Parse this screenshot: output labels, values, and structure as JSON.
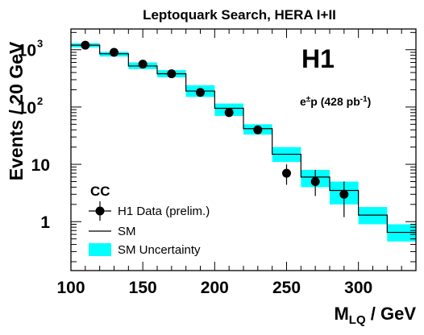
{
  "chart_data": {
    "type": "line",
    "title": "Leptoquark Search, HERA I+II",
    "xlabel_main": "M",
    "xlabel_sub": "LQ",
    "xlabel_unit": " / GeV",
    "ylabel": "Events / 20 GeV",
    "x_scale": "linear",
    "y_scale": "log",
    "xlim": [
      100,
      340
    ],
    "ylim": [
      0.14,
      2300
    ],
    "x_ticks": [
      {
        "value": 100,
        "label": "100"
      },
      {
        "value": 150,
        "label": "150"
      },
      {
        "value": 200,
        "label": "200"
      },
      {
        "value": 250,
        "label": "250"
      },
      {
        "value": 300,
        "label": "300"
      }
    ],
    "y_ticks": [
      {
        "value": 1,
        "label_base": "1",
        "label_exp": ""
      },
      {
        "value": 10,
        "label_base": "10",
        "label_exp": ""
      },
      {
        "value": 100,
        "label_base": "10",
        "label_exp": "2"
      },
      {
        "value": 1000,
        "label_base": "10",
        "label_exp": "3"
      }
    ],
    "experiment_label": "H1",
    "lumi_label_main": "e",
    "lumi_label_sup": "±",
    "lumi_label_rest": "p (428 pb",
    "lumi_label_sup2": "-1",
    "lumi_label_end": ")",
    "channel_label": "CC",
    "legend": {
      "placement": "bottom-left",
      "entries": [
        "H1 Data (prelim.)",
        "SM",
        "SM Uncertainty"
      ]
    },
    "colors": {
      "data": "#000000",
      "sm": "#000000",
      "uncertainty": "#00ffff"
    },
    "series": [
      {
        "name": "H1 Data (prelim.)",
        "kind": "points",
        "x": [
          110,
          130,
          150,
          170,
          190,
          210,
          230,
          250,
          270,
          290
        ],
        "y": [
          1200,
          900,
          560,
          380,
          180,
          80,
          40,
          7,
          5,
          3
        ],
        "y_low": [
          1120,
          840,
          520,
          350,
          165,
          71,
          34,
          4.4,
          2.8,
          1.2
        ],
        "y_high": [
          1280,
          960,
          600,
          410,
          195,
          89,
          46,
          10,
          8,
          5
        ]
      },
      {
        "name": "SM",
        "kind": "step",
        "bin_edges": [
          100,
          120,
          140,
          160,
          180,
          200,
          220,
          240,
          260,
          280,
          300,
          320,
          340
        ],
        "values": [
          1200,
          850,
          520,
          380,
          190,
          95,
          42,
          15,
          6,
          3.5,
          1.3,
          0.65
        ]
      },
      {
        "name": "SM Uncertainty",
        "kind": "band",
        "bin_edges": [
          100,
          120,
          140,
          160,
          180,
          200,
          220,
          240,
          260,
          280,
          300,
          320,
          340
        ],
        "low": [
          1100,
          760,
          460,
          330,
          150,
          70,
          33,
          11,
          4,
          2,
          0.9,
          0.45
        ],
        "high": [
          1300,
          920,
          600,
          440,
          240,
          115,
          50,
          20,
          8,
          5,
          1.8,
          0.9
        ]
      }
    ]
  }
}
